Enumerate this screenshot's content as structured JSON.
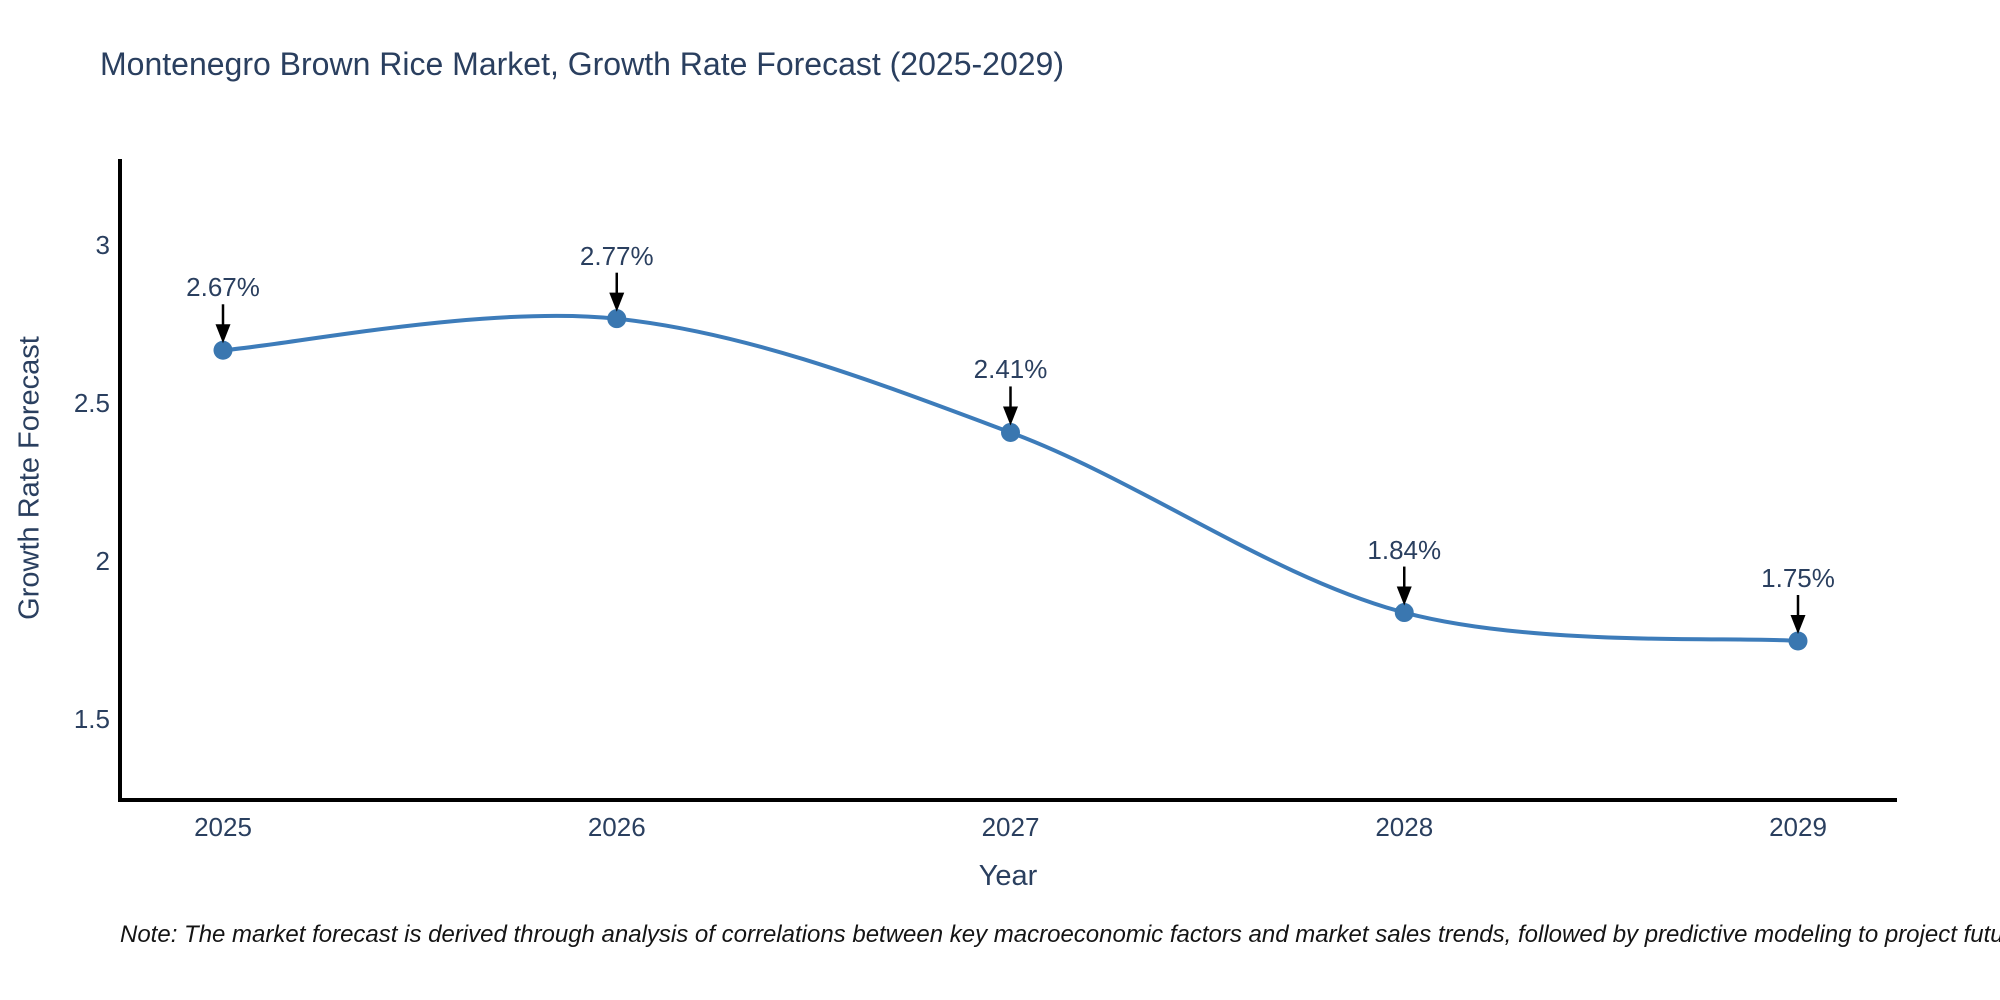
{
  "title": "Montenegro Brown Rice Market, Growth Rate Forecast (2025-2029)",
  "note": "Note: The market forecast is derived through analysis of correlations between key macroeconomic factors and market sales trends, followed by predictive modeling to project future sales",
  "chart_data": {
    "type": "line",
    "line_shape": "spline",
    "title": "Montenegro Brown Rice Market, Growth Rate Forecast (2025-2029)",
    "xlabel": "Year",
    "ylabel": "Growth Rate Forecast",
    "x": [
      2025,
      2026,
      2027,
      2028,
      2029
    ],
    "values": [
      2.67,
      2.77,
      2.41,
      1.84,
      1.75
    ],
    "point_labels": [
      "2.67%",
      "2.77%",
      "2.41%",
      "1.84%",
      "1.75%"
    ],
    "x_tick_labels": [
      "2025",
      "2026",
      "2027",
      "2028",
      "2029"
    ],
    "y_ticks": [
      {
        "label": "3",
        "value": 3.0
      },
      {
        "label": "2.5",
        "value": 2.5
      },
      {
        "label": "2",
        "value": 2.0
      },
      {
        "label": "1.5",
        "value": 1.5
      }
    ],
    "y_axis_range": [
      1.24,
      3.28
    ],
    "grid": false,
    "legend": null,
    "annotations_style": "value labels with downward black arrows above each point"
  },
  "colors": {
    "title_text": "#2a3f5f",
    "tick_text": "#2a3f5f",
    "line": "#3d7cba",
    "marker": "#3a77b0",
    "axis_line": "#000000",
    "arrow": "#000000",
    "note_text": "#141414",
    "background": "#ffffff"
  }
}
